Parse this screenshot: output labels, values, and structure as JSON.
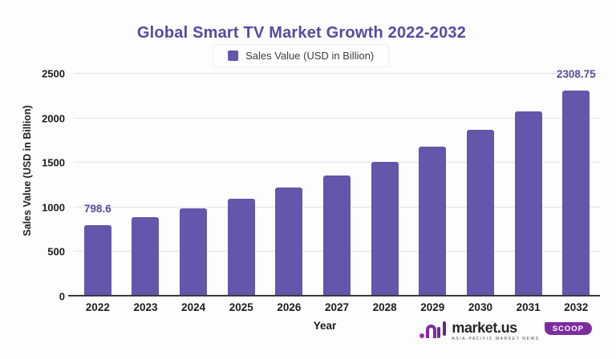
{
  "chart_data": {
    "type": "bar",
    "title": "Global Smart TV Market Growth 2022-2032",
    "legend": [
      {
        "label": "Sales Value (USD in Billion)",
        "color": "#6356ab"
      }
    ],
    "xlabel": "Year",
    "ylabel": "Sales Value (USD in Billion)",
    "categories": [
      "2022",
      "2023",
      "2024",
      "2025",
      "2026",
      "2027",
      "2028",
      "2029",
      "2030",
      "2031",
      "2032"
    ],
    "values": [
      798.6,
      888.0,
      987.5,
      1098.1,
      1221.1,
      1357.9,
      1509.9,
      1679.0,
      1867.1,
      2076.2,
      2308.75
    ],
    "data_labels": [
      "798.6",
      "",
      "",
      "",
      "",
      "",
      "",
      "",
      "",
      "",
      "2308.75"
    ],
    "ylim": [
      0,
      2500
    ],
    "yticks": [
      0,
      500,
      1000,
      1500,
      2000,
      2500
    ],
    "grid": "horizontal",
    "legend_position": "top",
    "colors": {
      "bar": "#6356ab",
      "title": "#564ba2",
      "data_label": "#564ba2",
      "gridline": "#e2e2e2",
      "axis_line": "#3a3a3a",
      "tick_text": "#1c1c1c"
    }
  },
  "branding": {
    "logo_text": "market.us",
    "logo_tagline": "ASIA-PACIFIC MARKET NEWS",
    "badge_label": "SCOOP",
    "badge_color": "#7c2da0"
  }
}
